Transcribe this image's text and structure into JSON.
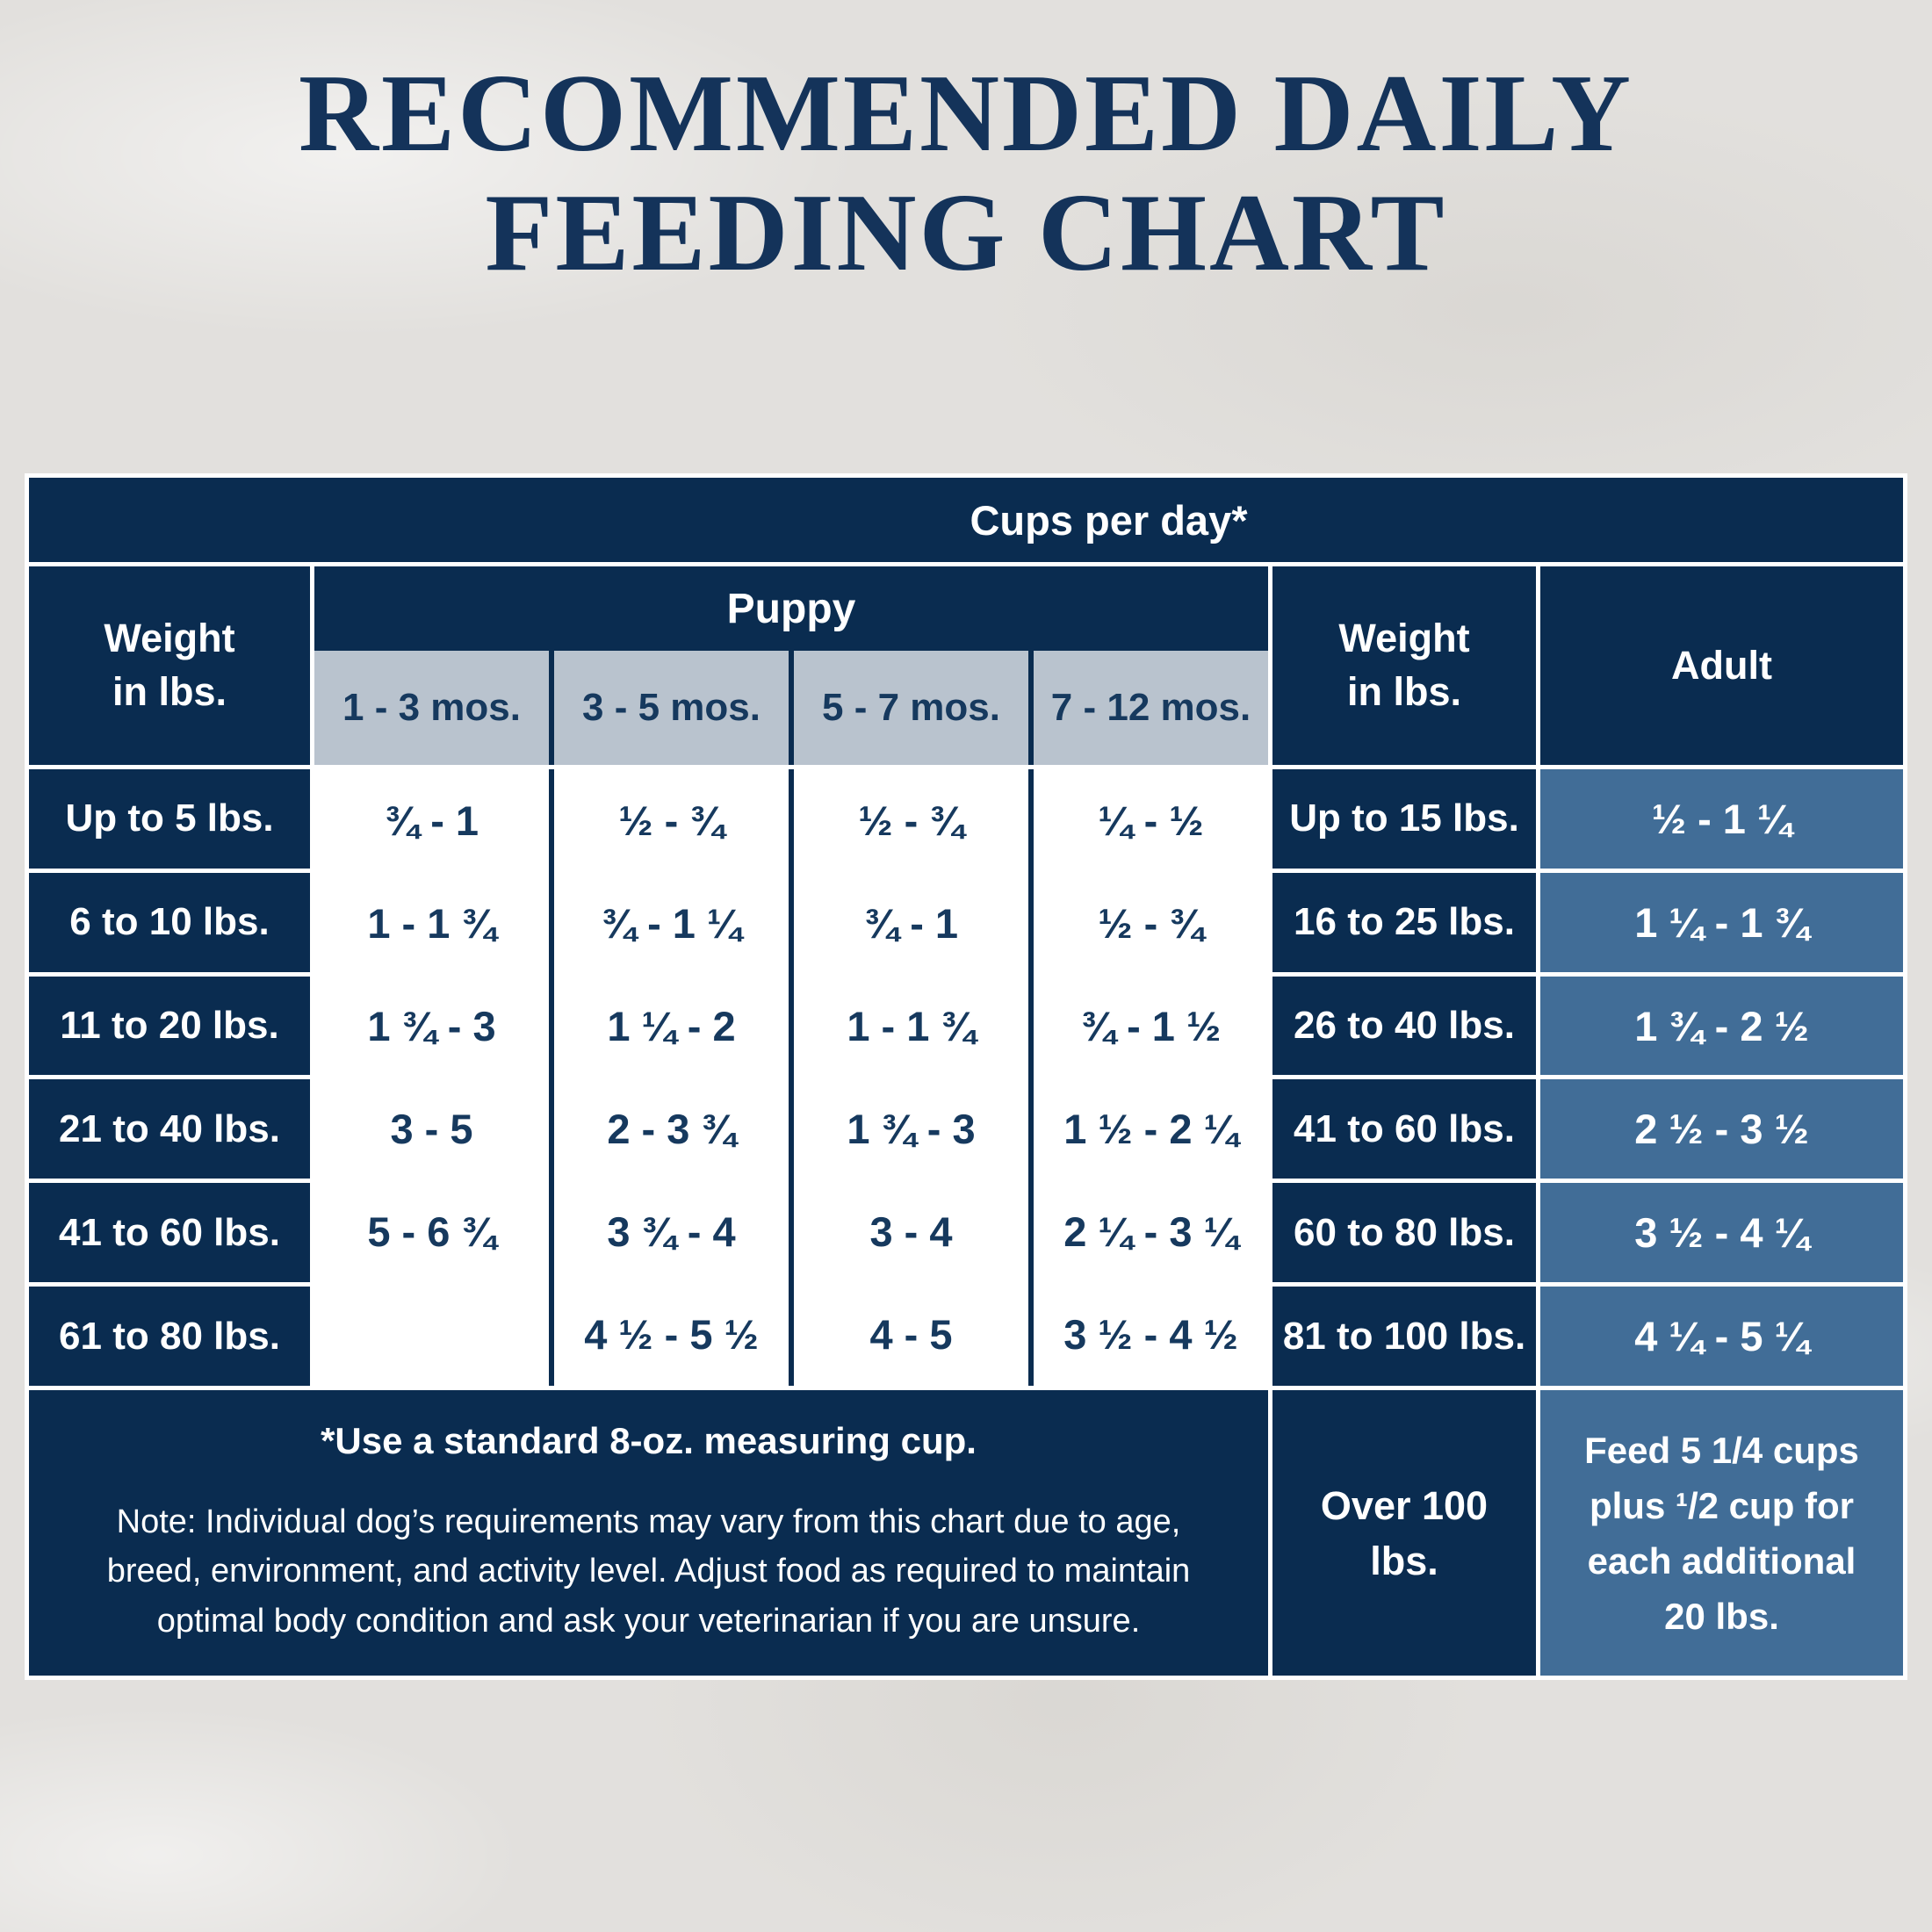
{
  "chart_data": {
    "type": "table",
    "title": "RECOMMENDED DAILY FEEDING CHART",
    "title_lines": [
      "RECOMMENDED DAILY",
      "FEEDING CHART"
    ],
    "spanning_header": "Cups per day*",
    "left_weight_header": {
      "line1": "Weight",
      "line2": "in lbs."
    },
    "puppy_group_header": "Puppy",
    "puppy_age_columns": [
      "1 - 3 mos.",
      "3 - 5 mos.",
      "5 - 7 mos.",
      "7 - 12 mos."
    ],
    "right_weight_header": {
      "line1": "Weight",
      "line2": "in lbs."
    },
    "adult_header": "Adult",
    "puppy_rows": [
      {
        "weight": "Up to 5 lbs.",
        "cups_1_3": "¾ - 1",
        "cups_3_5": "½ - ¾",
        "cups_5_7": "½ - ¾",
        "cups_7_12": "¼ - ½"
      },
      {
        "weight": "6 to 10 lbs.",
        "cups_1_3": "1 - 1 ¾",
        "cups_3_5": "¾ - 1 ¼",
        "cups_5_7": "¾ - 1",
        "cups_7_12": "½ - ¾"
      },
      {
        "weight": "11 to 20 lbs.",
        "cups_1_3": "1 ¾ - 3",
        "cups_3_5": "1 ¼ - 2",
        "cups_5_7": "1 - 1 ¾",
        "cups_7_12": "¾ - 1 ½"
      },
      {
        "weight": "21 to 40 lbs.",
        "cups_1_3": "3 - 5",
        "cups_3_5": "2 - 3 ¾",
        "cups_5_7": "1 ¾ - 3",
        "cups_7_12": "1 ½ - 2 ¼"
      },
      {
        "weight": "41 to 60 lbs.",
        "cups_1_3": "5 - 6 ¾",
        "cups_3_5": "3 ¾ - 4",
        "cups_5_7": "3 - 4",
        "cups_7_12": "2 ¼ - 3 ¼"
      },
      {
        "weight": "61 to 80 lbs.",
        "cups_1_3": "",
        "cups_3_5": "4 ½ - 5 ½",
        "cups_5_7": "4 - 5",
        "cups_7_12": "3 ½ - 4 ½"
      }
    ],
    "adult_rows": [
      {
        "weight": "Up to 15 lbs.",
        "cups": "½ - 1 ¼"
      },
      {
        "weight": "16 to 25 lbs.",
        "cups": "1 ¼ - 1 ¾"
      },
      {
        "weight": "26 to 40 lbs.",
        "cups": "1 ¾ - 2 ½"
      },
      {
        "weight": "41 to 60 lbs.",
        "cups": "2 ½ - 3 ½"
      },
      {
        "weight": "60 to 80 lbs.",
        "cups": "3 ½ - 4 ¼"
      },
      {
        "weight": "81 to 100 lbs.",
        "cups": "4 ¼ - 5 ¼"
      }
    ],
    "footnote": {
      "cup_note": "*Use a standard 8-oz. measuring cup.",
      "vary_note": "Note: Individual dog’s requirements may vary from this chart due to age, breed, environment, and activity level. Adjust food as required to maintain optimal body condition and ask your veterinarian if you are unsure.",
      "over_weight": "Over 100 lbs.",
      "over_feeding": "Feed 5 1/4 cups plus ¹/2 cup for each additional 20 lbs."
    },
    "colors": {
      "navy": "#0a2c50",
      "steel_blue": "#416d97",
      "subheader_gray_blue": "#b9c3ce",
      "cell_text_navy": "#16395e",
      "title_navy": "#14335a",
      "page_background": "#e2e0dd",
      "gridline_white": "#ffffff"
    }
  }
}
